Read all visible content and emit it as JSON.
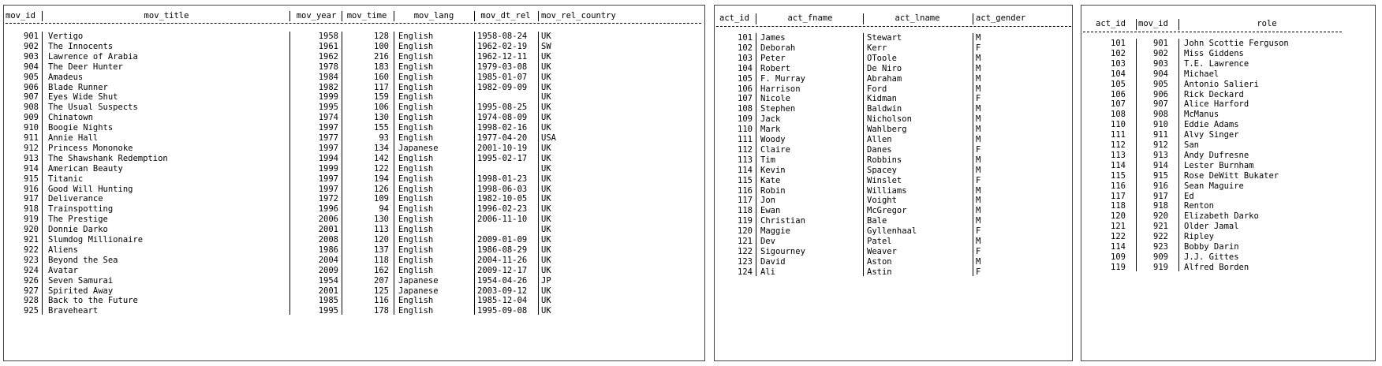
{
  "movies": {
    "headers": [
      "mov_id",
      "mov_title",
      "mov_year",
      "mov_time",
      "mov_lang",
      "mov_dt_rel",
      "mov_rel_country"
    ],
    "rows": [
      [
        "901",
        "Vertigo",
        "1958",
        "128",
        "English",
        "1958-08-24",
        "UK"
      ],
      [
        "902",
        "The Innocents",
        "1961",
        "100",
        "English",
        "1962-02-19",
        "SW"
      ],
      [
        "903",
        "Lawrence of Arabia",
        "1962",
        "216",
        "English",
        "1962-12-11",
        "UK"
      ],
      [
        "904",
        "The Deer Hunter",
        "1978",
        "183",
        "English",
        "1979-03-08",
        "UK"
      ],
      [
        "905",
        "Amadeus",
        "1984",
        "160",
        "English",
        "1985-01-07",
        "UK"
      ],
      [
        "906",
        "Blade Runner",
        "1982",
        "117",
        "English",
        "1982-09-09",
        "UK"
      ],
      [
        "907",
        "Eyes Wide Shut",
        "1999",
        "159",
        "English",
        "",
        "UK"
      ],
      [
        "908",
        "The Usual Suspects",
        "1995",
        "106",
        "English",
        "1995-08-25",
        "UK"
      ],
      [
        "909",
        "Chinatown",
        "1974",
        "130",
        "English",
        "1974-08-09",
        "UK"
      ],
      [
        "910",
        "Boogie Nights",
        "1997",
        "155",
        "English",
        "1998-02-16",
        "UK"
      ],
      [
        "911",
        "Annie Hall",
        "1977",
        "93",
        "English",
        "1977-04-20",
        "USA"
      ],
      [
        "912",
        "Princess Mononoke",
        "1997",
        "134",
        "Japanese",
        "2001-10-19",
        "UK"
      ],
      [
        "913",
        "The Shawshank Redemption",
        "1994",
        "142",
        "English",
        "1995-02-17",
        "UK"
      ],
      [
        "914",
        "American Beauty",
        "1999",
        "122",
        "English",
        "",
        "UK"
      ],
      [
        "915",
        "Titanic",
        "1997",
        "194",
        "English",
        "1998-01-23",
        "UK"
      ],
      [
        "916",
        "Good Will Hunting",
        "1997",
        "126",
        "English",
        "1998-06-03",
        "UK"
      ],
      [
        "917",
        "Deliverance",
        "1972",
        "109",
        "English",
        "1982-10-05",
        "UK"
      ],
      [
        "918",
        "Trainspotting",
        "1996",
        "94",
        "English",
        "1996-02-23",
        "UK"
      ],
      [
        "919",
        "The Prestige",
        "2006",
        "130",
        "English",
        "2006-11-10",
        "UK"
      ],
      [
        "920",
        "Donnie Darko",
        "2001",
        "113",
        "English",
        "",
        "UK"
      ],
      [
        "921",
        "Slumdog Millionaire",
        "2008",
        "120",
        "English",
        "2009-01-09",
        "UK"
      ],
      [
        "922",
        "Aliens",
        "1986",
        "137",
        "English",
        "1986-08-29",
        "UK"
      ],
      [
        "923",
        "Beyond the Sea",
        "2004",
        "118",
        "English",
        "2004-11-26",
        "UK"
      ],
      [
        "924",
        "Avatar",
        "2009",
        "162",
        "English",
        "2009-12-17",
        "UK"
      ],
      [
        "926",
        "Seven Samurai",
        "1954",
        "207",
        "Japanese",
        "1954-04-26",
        "JP"
      ],
      [
        "927",
        "Spirited Away",
        "2001",
        "125",
        "Japanese",
        "2003-09-12",
        "UK"
      ],
      [
        "928",
        "Back to the Future",
        "1985",
        "116",
        "English",
        "1985-12-04",
        "UK"
      ],
      [
        "925",
        "Braveheart",
        "1995",
        "178",
        "English",
        "1995-09-08",
        "UK"
      ]
    ]
  },
  "actors": {
    "headers": [
      "act_id",
      "act_fname",
      "act_lname",
      "act_gender"
    ],
    "rows": [
      [
        "101",
        "James",
        "Stewart",
        "M"
      ],
      [
        "102",
        "Deborah",
        "Kerr",
        "F"
      ],
      [
        "103",
        "Peter",
        "OToole",
        "M"
      ],
      [
        "104",
        "Robert",
        "De Niro",
        "M"
      ],
      [
        "105",
        "F. Murray",
        "Abraham",
        "M"
      ],
      [
        "106",
        "Harrison",
        "Ford",
        "M"
      ],
      [
        "107",
        "Nicole",
        "Kidman",
        "F"
      ],
      [
        "108",
        "Stephen",
        "Baldwin",
        "M"
      ],
      [
        "109",
        "Jack",
        "Nicholson",
        "M"
      ],
      [
        "110",
        "Mark",
        "Wahlberg",
        "M"
      ],
      [
        "111",
        "Woody",
        "Allen",
        "M"
      ],
      [
        "112",
        "Claire",
        "Danes",
        "F"
      ],
      [
        "113",
        "Tim",
        "Robbins",
        "M"
      ],
      [
        "114",
        "Kevin",
        "Spacey",
        "M"
      ],
      [
        "115",
        "Kate",
        "Winslet",
        "F"
      ],
      [
        "116",
        "Robin",
        "Williams",
        "M"
      ],
      [
        "117",
        "Jon",
        "Voight",
        "M"
      ],
      [
        "118",
        "Ewan",
        "McGregor",
        "M"
      ],
      [
        "119",
        "Christian",
        "Bale",
        "M"
      ],
      [
        "120",
        "Maggie",
        "Gyllenhaal",
        "F"
      ],
      [
        "121",
        "Dev",
        "Patel",
        "M"
      ],
      [
        "122",
        "Sigourney",
        "Weaver",
        "F"
      ],
      [
        "123",
        "David",
        "Aston",
        "M"
      ],
      [
        "124",
        "Ali",
        "Astin",
        "F"
      ]
    ]
  },
  "roles": {
    "headers": [
      "act_id",
      "mov_id",
      "role"
    ],
    "rows": [
      [
        "101",
        "901",
        "John Scottie Ferguson"
      ],
      [
        "102",
        "902",
        "Miss Giddens"
      ],
      [
        "103",
        "903",
        "T.E. Lawrence"
      ],
      [
        "104",
        "904",
        "Michael"
      ],
      [
        "105",
        "905",
        "Antonio Salieri"
      ],
      [
        "106",
        "906",
        "Rick Deckard"
      ],
      [
        "107",
        "907",
        "Alice Harford"
      ],
      [
        "108",
        "908",
        "McManus"
      ],
      [
        "110",
        "910",
        "Eddie Adams"
      ],
      [
        "111",
        "911",
        "Alvy Singer"
      ],
      [
        "112",
        "912",
        "San"
      ],
      [
        "113",
        "913",
        "Andy Dufresne"
      ],
      [
        "114",
        "914",
        "Lester Burnham"
      ],
      [
        "115",
        "915",
        "Rose DeWitt Bukater"
      ],
      [
        "116",
        "916",
        "Sean Maguire"
      ],
      [
        "117",
        "917",
        "Ed"
      ],
      [
        "118",
        "918",
        "Renton"
      ],
      [
        "120",
        "920",
        "Elizabeth Darko"
      ],
      [
        "121",
        "921",
        "Older Jamal"
      ],
      [
        "122",
        "922",
        "Ripley"
      ],
      [
        "114",
        "923",
        "Bobby Darin"
      ],
      [
        "109",
        "909",
        "J.J. Gittes"
      ],
      [
        "119",
        "919",
        "Alfred Borden"
      ]
    ]
  }
}
